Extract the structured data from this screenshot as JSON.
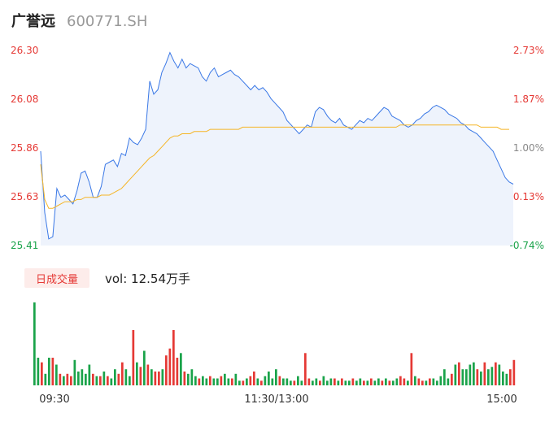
{
  "header": {
    "name": "广誉远",
    "code": "600771.SH"
  },
  "colors": {
    "up": "#e53935",
    "down": "#1aa34a",
    "neutral": "#888888",
    "price_line": "#3a78e6",
    "avg_line": "#f5b526",
    "area_fill": "#eef3fc"
  },
  "volume_panel": {
    "tag": "日成交量",
    "label": "vol: 12.54万手"
  },
  "chart_data": [
    {
      "type": "line",
      "title": "",
      "y_labels_left": [
        "26.30",
        "26.08",
        "25.86",
        "25.63",
        "25.41"
      ],
      "y_labels_right": [
        "2.73%",
        "1.87%",
        "1.00%",
        "0.13%",
        "-0.74%"
      ],
      "ylim": [
        25.41,
        26.3
      ],
      "prev_close": 25.6,
      "x_ticks": [
        "09:30",
        "11:30/13:00",
        "15:00"
      ],
      "series": [
        {
          "values": [
            25.84,
            25.56,
            25.44,
            25.45,
            25.67,
            25.63,
            25.64,
            25.62,
            25.6,
            25.66,
            25.74,
            25.75,
            25.7,
            25.63,
            25.63,
            25.68,
            25.78,
            25.79,
            25.8,
            25.77,
            25.83,
            25.82,
            25.9,
            25.88,
            25.87,
            25.9,
            25.94,
            26.16,
            26.1,
            26.12,
            26.2,
            26.24,
            26.29,
            26.25,
            26.22,
            26.26,
            26.22,
            26.24,
            26.23,
            26.22,
            26.18,
            26.16,
            26.2,
            26.22,
            26.18,
            26.19,
            26.2,
            26.21,
            26.19,
            26.18,
            26.16,
            26.14,
            26.12,
            26.14,
            26.12,
            26.13,
            26.11,
            26.08,
            26.06,
            26.04,
            26.02,
            25.98,
            25.96,
            25.94,
            25.92,
            25.94,
            25.96,
            25.95,
            26.02,
            26.04,
            26.03,
            26.0,
            25.98,
            25.97,
            25.99,
            25.96,
            25.95,
            25.94,
            25.96,
            25.98,
            25.97,
            25.99,
            25.98,
            26.0,
            26.02,
            26.04,
            26.03,
            26.0,
            25.99,
            25.98,
            25.96,
            25.95,
            25.96,
            25.98,
            25.99,
            26.01,
            26.02,
            26.04,
            26.05,
            26.04,
            26.03,
            26.01,
            26.0,
            25.99,
            25.97,
            25.96,
            25.94,
            25.93,
            25.92,
            25.9,
            25.88,
            25.86,
            25.84,
            25.8,
            25.76,
            25.72,
            25.7,
            25.69
          ]
        },
        {
          "values": [
            25.78,
            25.62,
            25.58,
            25.58,
            25.59,
            25.6,
            25.61,
            25.61,
            25.61,
            25.62,
            25.62,
            25.63,
            25.63,
            25.63,
            25.63,
            25.64,
            25.64,
            25.64,
            25.65,
            25.66,
            25.67,
            25.69,
            25.71,
            25.73,
            25.75,
            25.77,
            25.79,
            25.81,
            25.82,
            25.84,
            25.86,
            25.88,
            25.9,
            25.91,
            25.91,
            25.92,
            25.92,
            25.92,
            25.93,
            25.93,
            25.93,
            25.93,
            25.94,
            25.94,
            25.94,
            25.94,
            25.94,
            25.94,
            25.94,
            25.94,
            25.95,
            25.95,
            25.95,
            25.95,
            25.95,
            25.95,
            25.95,
            25.95,
            25.95,
            25.95,
            25.95,
            25.95,
            25.95,
            25.95,
            25.95,
            25.95,
            25.95,
            25.95,
            25.95,
            25.95,
            25.95,
            25.95,
            25.95,
            25.95,
            25.95,
            25.95,
            25.95,
            25.95,
            25.95,
            25.95,
            25.95,
            25.95,
            25.95,
            25.95,
            25.95,
            25.95,
            25.95,
            25.95,
            25.95,
            25.96,
            25.96,
            25.96,
            25.96,
            25.96,
            25.96,
            25.96,
            25.96,
            25.96,
            25.96,
            25.96,
            25.96,
            25.96,
            25.96,
            25.96,
            25.96,
            25.96,
            25.96,
            25.96,
            25.96,
            25.95,
            25.95,
            25.95,
            25.95,
            25.95,
            25.94,
            25.94,
            25.94
          ]
        }
      ]
    },
    {
      "type": "bar",
      "title": "",
      "unit": "万手",
      "values": [
        3.6,
        1.2,
        1.0,
        0.5,
        1.2,
        1.2,
        0.9,
        0.5,
        0.4,
        0.5,
        0.4,
        1.1,
        0.6,
        0.7,
        0.5,
        0.9,
        0.5,
        0.4,
        0.4,
        0.6,
        0.4,
        0.3,
        0.7,
        0.5,
        1.0,
        0.7,
        0.4,
        2.4,
        1.0,
        0.8,
        1.5,
        0.9,
        0.7,
        0.6,
        0.6,
        0.7,
        1.3,
        1.6,
        2.4,
        1.2,
        1.4,
        0.6,
        0.5,
        0.7,
        0.4,
        0.3,
        0.4,
        0.3,
        0.4,
        0.3,
        0.3,
        0.4,
        0.5,
        0.3,
        0.3,
        0.5,
        0.2,
        0.2,
        0.3,
        0.4,
        0.6,
        0.3,
        0.2,
        0.4,
        0.6,
        0.3,
        0.7,
        0.4,
        0.3,
        0.3,
        0.2,
        0.2,
        0.4,
        0.2,
        1.4,
        0.3,
        0.2,
        0.3,
        0.2,
        0.4,
        0.2,
        0.3,
        0.3,
        0.2,
        0.3,
        0.2,
        0.2,
        0.3,
        0.2,
        0.3,
        0.2,
        0.2,
        0.3,
        0.2,
        0.3,
        0.2,
        0.3,
        0.2,
        0.2,
        0.3,
        0.4,
        0.3,
        0.2,
        1.4,
        0.4,
        0.3,
        0.2,
        0.2,
        0.3,
        0.3,
        0.2,
        0.4,
        0.7,
        0.3,
        0.5,
        0.9,
        1.0,
        0.7,
        0.7,
        0.9,
        1.0,
        0.7,
        0.6,
        1.0,
        0.7,
        0.8,
        1.0,
        0.9,
        0.6,
        0.5,
        0.7,
        1.1
      ],
      "up": [
        0,
        0,
        1,
        0,
        0,
        1,
        0,
        1,
        0,
        1,
        1,
        0,
        0,
        0,
        0,
        0,
        1,
        0,
        1,
        0,
        1,
        0,
        0,
        1,
        1,
        0,
        0,
        1,
        0,
        1,
        0,
        1,
        0,
        1,
        1,
        0,
        1,
        1,
        1,
        1,
        0,
        1,
        0,
        0,
        0,
        1,
        0,
        0,
        1,
        0,
        0,
        1,
        0,
        0,
        1,
        0,
        0,
        1,
        0,
        1,
        1,
        0,
        1,
        0,
        0,
        0,
        0,
        1,
        0,
        0,
        0,
        1,
        0,
        0,
        1,
        1,
        0,
        0,
        1,
        0,
        0,
        0,
        1,
        0,
        1,
        0,
        0,
        1,
        0,
        0,
        1,
        0,
        1,
        0,
        0,
        1,
        0,
        1,
        0,
        0,
        1,
        1,
        0,
        1,
        0,
        1,
        1,
        0,
        1,
        0,
        0,
        0,
        0,
        0,
        1,
        0,
        1,
        0,
        0,
        0,
        0,
        1,
        0,
        1,
        0,
        0,
        1,
        0,
        0,
        0,
        1,
        1
      ]
    }
  ]
}
